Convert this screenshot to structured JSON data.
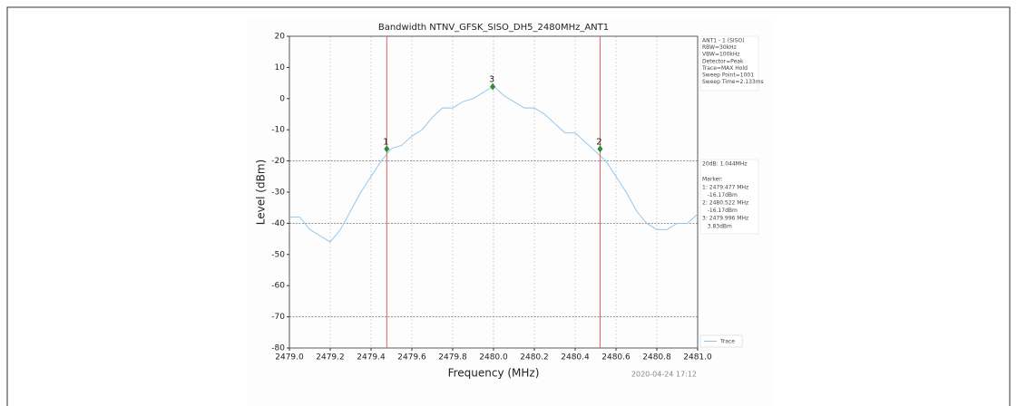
{
  "chart_data": {
    "type": "line",
    "title": "Bandwidth NTNV_GFSK_SISO_DH5_2480MHz_ANT1",
    "x_label": "Frequency (MHz)",
    "y_label": "Level (dBm)",
    "timestamp": "2020-04-24 17:12",
    "x": [
      2479.0,
      2479.05,
      2479.1,
      2479.15,
      2479.2,
      2479.25,
      2479.3,
      2479.35,
      2479.4,
      2479.45,
      2479.5,
      2479.55,
      2479.6,
      2479.65,
      2479.7,
      2479.75,
      2479.8,
      2479.85,
      2479.9,
      2479.95,
      2480.0,
      2480.05,
      2480.1,
      2480.15,
      2480.2,
      2480.25,
      2480.3,
      2480.35,
      2480.4,
      2480.45,
      2480.5,
      2480.55,
      2480.6,
      2480.65,
      2480.7,
      2480.75,
      2480.8,
      2480.85,
      2480.9,
      2480.95,
      2481.0
    ],
    "series": [
      {
        "name": "Trace",
        "color": "#8cc2ea",
        "values": [
          -38,
          -38,
          -42,
          -44,
          -46,
          -42,
          -36,
          -30,
          -25,
          -20,
          -16,
          -15,
          -12,
          -10,
          -6,
          -3,
          -3,
          -1,
          0,
          2,
          4,
          1,
          -1,
          -3,
          -3,
          -5,
          -8,
          -11,
          -11,
          -14,
          -17,
          -20,
          -25,
          -30,
          -36,
          -40,
          -42,
          -42,
          -40,
          -40,
          -37
        ]
      }
    ],
    "markers": [
      {
        "label": "1",
        "x": 2479.477,
        "y": -16.17
      },
      {
        "label": "2",
        "x": 2480.522,
        "y": -16.17
      },
      {
        "label": "3",
        "x": 2479.996,
        "y": 3.83
      }
    ],
    "marker_color": "#2e8b3a",
    "marker_line_color": "#e06060",
    "hlines": [
      -20,
      -40,
      -70
    ],
    "xlim": [
      2479.0,
      2481.0
    ],
    "xticks": [
      {
        "value": 2479.0,
        "label": "2479.0"
      },
      2479.2,
      2479.4,
      2479.6,
      2479.8,
      {
        "value": 2480.0,
        "label": "2480.0"
      },
      2480.2,
      2480.4,
      2480.6,
      2480.8,
      {
        "value": 2481.0,
        "label": "2481.0"
      }
    ],
    "ylim": [
      -80,
      20
    ],
    "yticks": [
      20,
      10,
      0,
      -10,
      -20,
      -30,
      -40,
      -50,
      -60,
      -70,
      -80
    ],
    "grid": "x",
    "settings_text": [
      "ANT1 - 1 (SISO)",
      "RBW=30kHz",
      "VBW=100kHz",
      "Detector=Peak",
      "Trace=MAX Hold",
      "Sweep Point=1001",
      "Sweep Time=2.133ms"
    ],
    "result_text": [
      "20dB: 1.044MHz",
      "",
      "Marker:",
      "1: 2479.477 MHz",
      "   -16.17dBm",
      "2: 2480.522 MHz",
      "   -16.17dBm",
      "3: 2479.996 MHz",
      "   3.83dBm"
    ]
  }
}
